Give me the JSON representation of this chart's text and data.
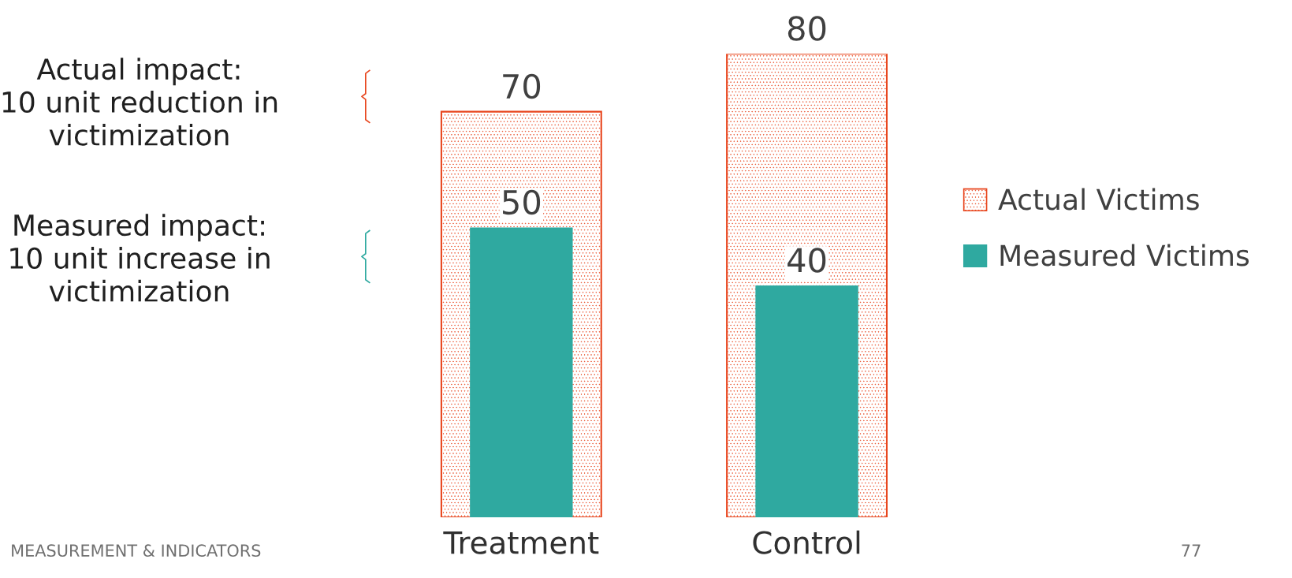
{
  "chart_data": {
    "type": "bar",
    "categories": [
      "Treatment",
      "Control"
    ],
    "series": [
      {
        "name": "Actual Victims",
        "color": "#e8461e",
        "values": [
          70,
          80
        ]
      },
      {
        "name": "Measured Victims",
        "color": "#2fa9a0",
        "values": [
          50,
          40
        ]
      }
    ],
    "data_labels": true,
    "legend": "right",
    "grid": false,
    "annotations": [
      "Actual impact:\n10 unit reduction in\nvictimization",
      "Measured impact:\n10 unit increase in\nvictimization",
      "MEASUREMENT & INDICATORS",
      "77"
    ]
  }
}
